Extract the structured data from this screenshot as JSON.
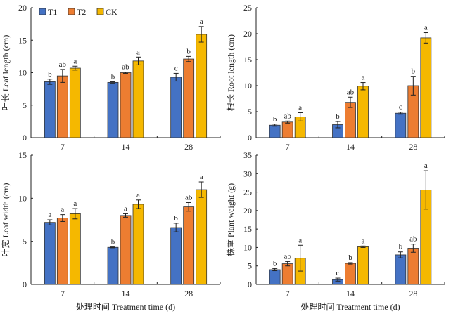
{
  "colors": {
    "T1": "#4472C4",
    "T2": "#ED7D31",
    "CK": "#F5B800"
  },
  "legend": [
    "T1",
    "T2",
    "CK"
  ],
  "xlabel": "处理时间 Treatment time (d)",
  "chart_data": [
    {
      "type": "bar",
      "title": "",
      "ylabel": "叶长 Leaf length (cm)",
      "xlabel": "",
      "categories": [
        "7",
        "14",
        "28"
      ],
      "ylim": [
        0,
        20
      ],
      "yticks": [
        0,
        5,
        10,
        15,
        20
      ],
      "legend": "top-left",
      "series": [
        {
          "name": "T1",
          "values": [
            8.6,
            8.5,
            9.3
          ],
          "errors": [
            0.4,
            0.1,
            0.6
          ],
          "letters": [
            "b",
            "b",
            "c"
          ]
        },
        {
          "name": "T2",
          "values": [
            9.5,
            10.0,
            12.1
          ],
          "errors": [
            1.0,
            0.1,
            0.4
          ],
          "letters": [
            "ab",
            "ab",
            "b"
          ]
        },
        {
          "name": "CK",
          "values": [
            10.7,
            11.8,
            15.9
          ],
          "errors": [
            0.3,
            0.6,
            1.2
          ],
          "letters": [
            "a",
            "a",
            "a"
          ]
        }
      ]
    },
    {
      "type": "bar",
      "title": "",
      "ylabel": "根长 Root length (cm)",
      "xlabel": "",
      "categories": [
        "7",
        "14",
        "28"
      ],
      "ylim": [
        0,
        25
      ],
      "yticks": [
        0,
        5,
        10,
        15,
        20,
        25
      ],
      "series": [
        {
          "name": "T1",
          "values": [
            2.4,
            2.5,
            4.7
          ],
          "errors": [
            0.2,
            0.6,
            0.2
          ],
          "letters": [
            "b",
            "b",
            "c"
          ]
        },
        {
          "name": "T2",
          "values": [
            3.0,
            6.8,
            10.0
          ],
          "errors": [
            0.2,
            1.0,
            1.8
          ],
          "letters": [
            "ab",
            "ab",
            "b"
          ]
        },
        {
          "name": "CK",
          "values": [
            4.0,
            9.9,
            19.2
          ],
          "errors": [
            0.8,
            0.7,
            1.0
          ],
          "letters": [
            "a",
            "a",
            "a"
          ]
        }
      ]
    },
    {
      "type": "bar",
      "title": "",
      "ylabel": "叶宽 Leaf width (cm)",
      "xlabel": "处理时间 Treatment time (d)",
      "categories": [
        "7",
        "14",
        "28"
      ],
      "ylim": [
        0,
        15
      ],
      "yticks": [
        0,
        5,
        10,
        15
      ],
      "series": [
        {
          "name": "T1",
          "values": [
            7.2,
            4.3,
            6.6
          ],
          "errors": [
            0.3,
            0.05,
            0.5
          ],
          "letters": [
            "a",
            "b",
            "b"
          ]
        },
        {
          "name": "T2",
          "values": [
            7.7,
            8.0,
            9.0
          ],
          "errors": [
            0.4,
            0.2,
            0.5
          ],
          "letters": [
            "a",
            "a",
            "ab"
          ]
        },
        {
          "name": "CK",
          "values": [
            8.2,
            9.3,
            11.0
          ],
          "errors": [
            0.6,
            0.5,
            0.9
          ],
          "letters": [
            "a",
            "a",
            "a"
          ]
        }
      ]
    },
    {
      "type": "bar",
      "title": "",
      "ylabel": "株重 Plant weight (g)",
      "xlabel": "处理时间 Treatment time (d)",
      "categories": [
        "7",
        "14",
        "28"
      ],
      "ylim": [
        0,
        35
      ],
      "yticks": [
        0,
        5,
        10,
        15,
        20,
        25,
        30,
        35
      ],
      "series": [
        {
          "name": "T1",
          "values": [
            4.0,
            1.3,
            8.0
          ],
          "errors": [
            0.3,
            0.4,
            0.8
          ],
          "letters": [
            "b",
            "c",
            "b"
          ]
        },
        {
          "name": "T2",
          "values": [
            5.6,
            5.7,
            9.8
          ],
          "errors": [
            0.6,
            0.2,
            1.1
          ],
          "letters": [
            "ab",
            "b",
            "ab"
          ]
        },
        {
          "name": "CK",
          "values": [
            7.1,
            10.2,
            25.6
          ],
          "errors": [
            3.5,
            0.2,
            5.2
          ],
          "letters": [
            "a",
            "a",
            "a"
          ]
        }
      ]
    }
  ]
}
